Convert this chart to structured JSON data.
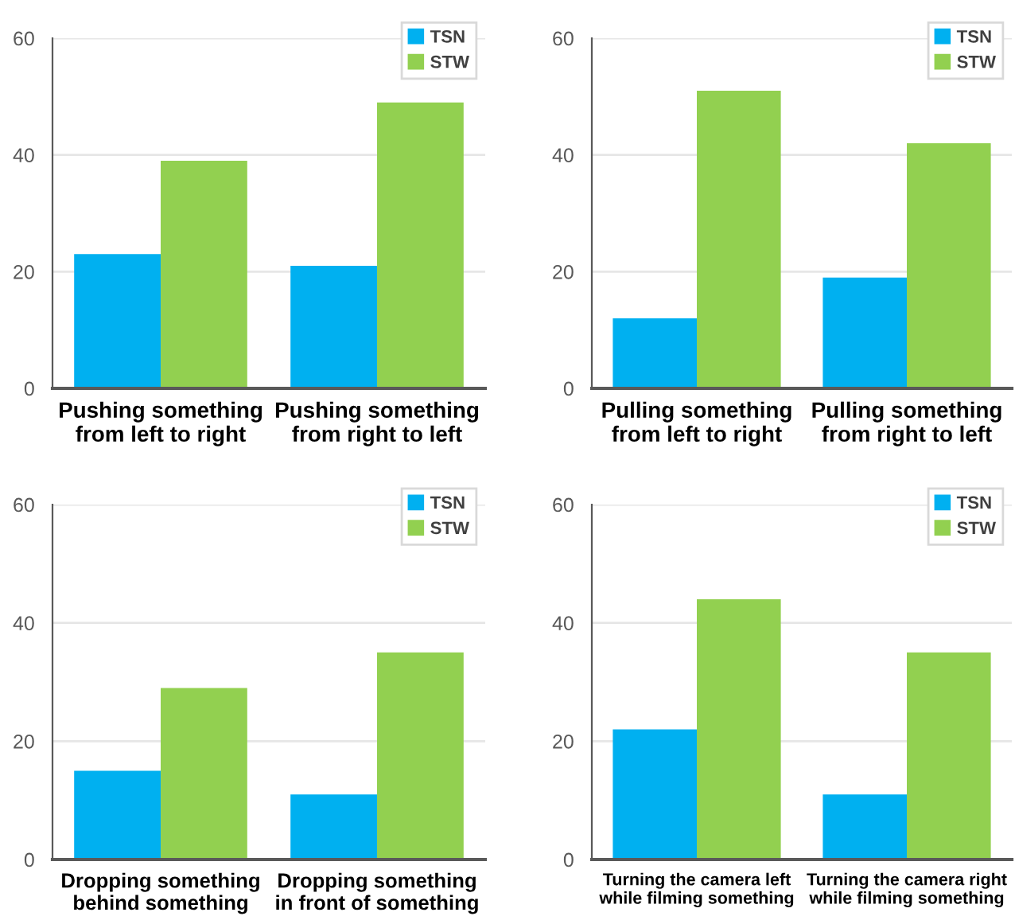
{
  "chart_data": [
    {
      "type": "bar",
      "categories": [
        "Pushing something\nfrom left to right",
        "Pushing something\nfrom right to left"
      ],
      "series": [
        {
          "name": "TSN",
          "color": "#00b0f0",
          "values": [
            23,
            21
          ]
        },
        {
          "name": "STW",
          "color": "#92d050",
          "values": [
            39,
            49
          ]
        }
      ],
      "ylim": [
        0,
        60
      ],
      "yticks": [
        0,
        20,
        40,
        60
      ],
      "grid": "y",
      "legend": "top right"
    },
    {
      "type": "bar",
      "categories": [
        "Pulling something\nfrom left to right",
        "Pulling something\nfrom right to left"
      ],
      "series": [
        {
          "name": "TSN",
          "color": "#00b0f0",
          "values": [
            12,
            19
          ]
        },
        {
          "name": "STW",
          "color": "#92d050",
          "values": [
            51,
            42
          ]
        }
      ],
      "ylim": [
        0,
        60
      ],
      "yticks": [
        0,
        20,
        40,
        60
      ],
      "grid": "y",
      "legend": "top right"
    },
    {
      "type": "bar",
      "categories": [
        "Dropping something\nbehind something",
        "Dropping something\nin front of something"
      ],
      "series": [
        {
          "name": "TSN",
          "color": "#00b0f0",
          "values": [
            15,
            11
          ]
        },
        {
          "name": "STW",
          "color": "#92d050",
          "values": [
            29,
            35
          ]
        }
      ],
      "ylim": [
        0,
        60
      ],
      "yticks": [
        0,
        20,
        40,
        60
      ],
      "grid": "y",
      "legend": "top right"
    },
    {
      "type": "bar",
      "categories": [
        "Turning the camera left\nwhile filming something",
        "Turning the camera right\nwhile filming something"
      ],
      "series": [
        {
          "name": "TSN",
          "color": "#00b0f0",
          "values": [
            22,
            11
          ]
        },
        {
          "name": "STW",
          "color": "#92d050",
          "values": [
            44,
            35
          ]
        }
      ],
      "ylim": [
        0,
        60
      ],
      "yticks": [
        0,
        20,
        40,
        60
      ],
      "grid": "y",
      "legend": "top right"
    }
  ]
}
